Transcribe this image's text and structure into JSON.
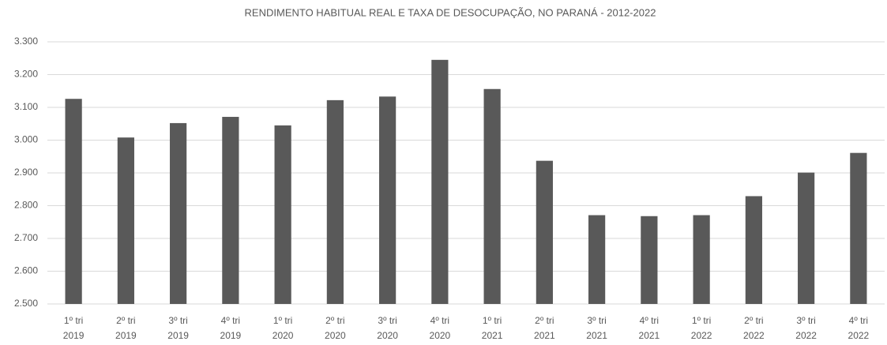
{
  "chart_data": {
    "type": "bar",
    "title": "RENDIMENTO HABITUAL REAL E TAXA DE DESOCUPAÇÃO, NO PARANÁ - 2012-2022",
    "categories": [
      [
        "1º tri",
        "2019"
      ],
      [
        "2º tri",
        "2019"
      ],
      [
        "3º tri",
        "2019"
      ],
      [
        "4º tri",
        "2019"
      ],
      [
        "1º tri",
        "2020"
      ],
      [
        "2º tri",
        "2020"
      ],
      [
        "3º tri",
        "2020"
      ],
      [
        "4º tri",
        "2020"
      ],
      [
        "1º tri",
        "2021"
      ],
      [
        "2º tri",
        "2021"
      ],
      [
        "3º tri",
        "2021"
      ],
      [
        "4º tri",
        "2021"
      ],
      [
        "1º tri",
        "2022"
      ],
      [
        "2º tri",
        "2022"
      ],
      [
        "3º tri",
        "2022"
      ],
      [
        "4º tri",
        "2022"
      ]
    ],
    "values": [
      3126,
      3008,
      3052,
      3071,
      3045,
      3122,
      3133,
      3245,
      3156,
      2937,
      2771,
      2768,
      2771,
      2829,
      2901,
      2961
    ],
    "color": "#595959",
    "ylim": [
      2500,
      3300
    ],
    "yticks": [
      {
        "value": 2500,
        "label": "2.500"
      },
      {
        "value": 2600,
        "label": "2.600"
      },
      {
        "value": 2700,
        "label": "2.700"
      },
      {
        "value": 2800,
        "label": "2.800"
      },
      {
        "value": 2900,
        "label": "2.900"
      },
      {
        "value": 3000,
        "label": "3.000"
      },
      {
        "value": 3100,
        "label": "3.100"
      },
      {
        "value": 3200,
        "label": "3.200"
      },
      {
        "value": 3300,
        "label": "3.300"
      }
    ],
    "grid": true
  }
}
